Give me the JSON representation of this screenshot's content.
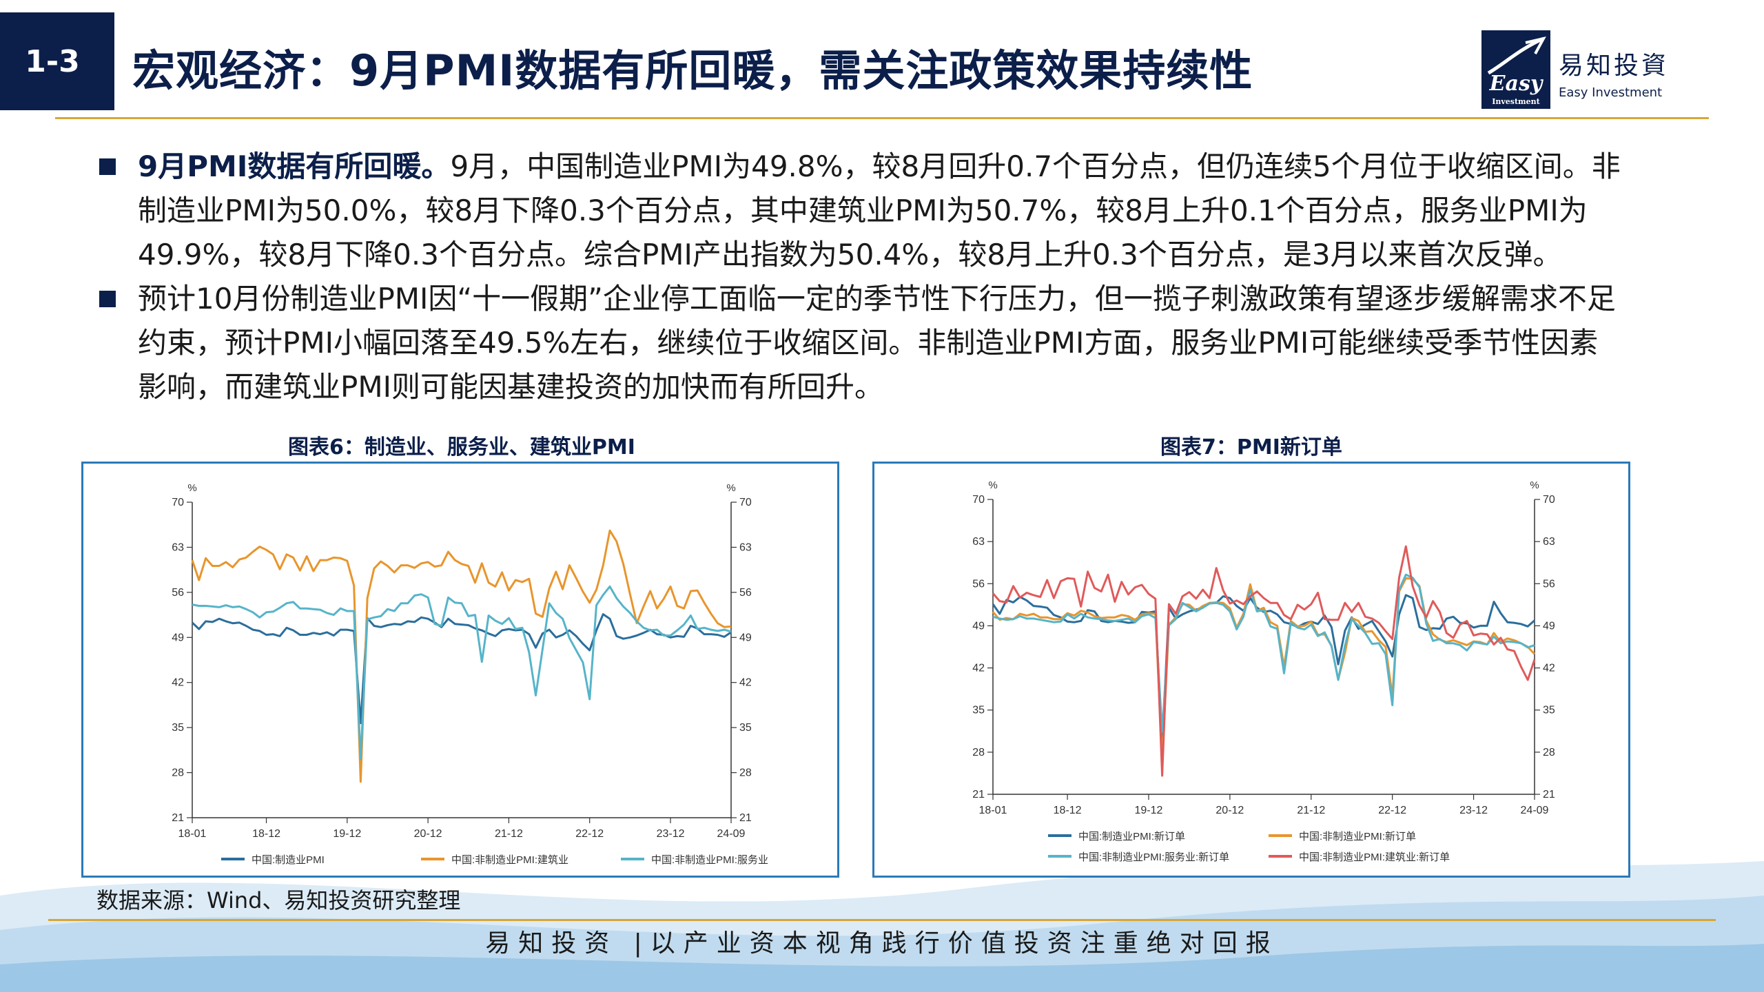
{
  "header": {
    "slide_number": "1-3",
    "title": "宏观经济：9月PMI数据有所回暖，需关注政策效果持续性",
    "logo_cn": "易知投資",
    "logo_en": "Easy Investment",
    "logo_mark": "Easy",
    "logo_mark_sub": "Investment"
  },
  "bullets": [
    {
      "lead": "9月PMI数据有所回暖。",
      "body": "9月，中国制造业PMI为49.8%，较8月回升0.7个百分点，但仍连续5个月位于收缩区间。非制造业PMI为50.0%，较8月下降0.3个百分点，其中建筑业PMI为50.7%，较8月上升0.1个百分点，服务业PMI为49.9%，较8月下降0.3个百分点。综合PMI产出指数为50.4%，较8月上升0.3个百分点，是3月以来首次反弹。"
    },
    {
      "lead": "",
      "body": "预计10月份制造业PMI因“十一假期”企业停工面临一定的季节性下行压力，但一揽子刺激政策有望逐步缓解需求不足约束，预计PMI小幅回落至49.5%左右，继续位于收缩区间。非制造业PMI方面，服务业PMI可能继续受季节性因素影响，而建筑业PMI则可能因基建投资的加快而有所回升。"
    }
  ],
  "source": "数据来源：Wind、易知投资研究整理",
  "footer": "易知投资 |以产业资本视角践行价值投资注重绝对回报",
  "colors": {
    "navy": "#0c1f4a",
    "gold": "#d7a638",
    "frame": "#2a7ab8"
  },
  "chart_data": [
    {
      "type": "line",
      "title": "图表6：制造业、服务业、建筑业PMI",
      "unit_left": "%",
      "unit_right": "%",
      "ylim": [
        21,
        70
      ],
      "yticks": [
        21,
        28,
        35,
        42,
        49,
        56,
        63,
        70
      ],
      "xticks": [
        "18-01",
        "18-12",
        "19-12",
        "20-12",
        "21-12",
        "22-12",
        "23-12",
        "24-09"
      ],
      "x_start": "2018-01",
      "x_end": "2024-09",
      "series": [
        {
          "name": "中国:制造业PMI",
          "color": "#2b6e9c",
          "values": [
            51.3,
            50.3,
            51.5,
            51.4,
            51.9,
            51.5,
            51.2,
            51.3,
            50.8,
            50.2,
            50.0,
            49.4,
            49.5,
            49.2,
            50.5,
            50.1,
            49.4,
            49.4,
            49.7,
            49.5,
            49.8,
            49.3,
            50.2,
            50.2,
            50.0,
            35.7,
            52.0,
            50.8,
            50.6,
            50.9,
            51.1,
            51.0,
            51.5,
            51.4,
            52.1,
            51.9,
            51.3,
            50.6,
            51.9,
            51.1,
            51.0,
            50.9,
            50.4,
            50.1,
            49.6,
            49.2,
            50.1,
            50.3,
            50.1,
            50.2,
            49.5,
            47.4,
            49.6,
            50.2,
            49.0,
            49.4,
            50.1,
            49.2,
            48.0,
            47.0,
            50.1,
            52.6,
            51.9,
            49.2,
            48.8,
            49.0,
            49.3,
            49.7,
            50.2,
            49.5,
            49.4,
            49.0,
            49.2,
            49.1,
            50.8,
            50.4,
            49.5,
            49.5,
            49.4,
            49.1,
            49.8
          ]
        },
        {
          "name": "中国:非制造业PMI:建筑业",
          "color": "#e8952c",
          "values": [
            61.0,
            57.9,
            61.3,
            60.1,
            60.1,
            60.7,
            59.9,
            61.1,
            61.4,
            62.3,
            63.1,
            62.6,
            61.9,
            59.6,
            61.9,
            61.4,
            59.4,
            61.6,
            59.3,
            61.0,
            61.0,
            61.4,
            61.3,
            60.9,
            57.1,
            26.6,
            55.1,
            59.7,
            60.8,
            60.1,
            59.1,
            60.2,
            60.2,
            59.8,
            60.5,
            60.7,
            60.0,
            60.2,
            62.3,
            61.0,
            60.4,
            60.1,
            57.5,
            60.5,
            57.5,
            56.9,
            59.1,
            56.3,
            57.9,
            57.6,
            58.1,
            52.7,
            52.2,
            56.6,
            59.2,
            56.5,
            60.2,
            58.2,
            56.1,
            54.4,
            56.4,
            60.2,
            65.6,
            63.9,
            60.4,
            55.7,
            51.2,
            53.8,
            56.2,
            53.5,
            55.0,
            56.9,
            53.9,
            53.5,
            56.2,
            56.3,
            54.4,
            52.7,
            51.2,
            50.6,
            50.7
          ]
        },
        {
          "name": "中国:非制造业PMI:服务业",
          "color": "#56b4c9",
          "values": [
            54.1,
            53.9,
            53.9,
            53.8,
            53.7,
            54.0,
            53.7,
            53.8,
            53.4,
            52.9,
            52.1,
            52.9,
            53.0,
            53.6,
            54.3,
            54.5,
            53.5,
            53.5,
            53.4,
            53.3,
            52.8,
            52.5,
            53.5,
            53.1,
            53.1,
            30.1,
            51.8,
            52.1,
            52.3,
            53.4,
            53.1,
            54.3,
            54.3,
            55.5,
            55.7,
            55.2,
            51.1,
            50.8,
            55.2,
            54.4,
            54.3,
            52.3,
            52.5,
            45.2,
            52.4,
            51.6,
            51.1,
            52.0,
            50.3,
            50.5,
            46.7,
            40.0,
            47.1,
            54.3,
            52.8,
            51.9,
            48.9,
            47.0,
            45.1,
            39.4,
            54.0,
            55.6,
            56.9,
            55.1,
            53.8,
            52.8,
            51.5,
            50.5,
            50.1,
            50.2,
            49.3,
            49.3,
            50.1,
            51.0,
            52.4,
            50.3,
            50.5,
            50.2,
            50.0,
            50.2,
            49.9
          ]
        }
      ]
    },
    {
      "type": "line",
      "title": "图表7：PMI新订单",
      "unit_left": "%",
      "unit_right": "%",
      "ylim": [
        21,
        70
      ],
      "yticks": [
        21,
        28,
        35,
        42,
        49,
        56,
        63,
        70
      ],
      "xticks": [
        "18-01",
        "18-12",
        "19-12",
        "20-12",
        "21-12",
        "22-12",
        "23-12",
        "24-09"
      ],
      "x_start": "2018-01",
      "x_end": "2024-09",
      "series": [
        {
          "name": "中国:制造业PMI:新订单",
          "color": "#2b6e9c",
          "values": [
            52.6,
            51.0,
            53.3,
            52.9,
            53.8,
            53.2,
            52.3,
            52.2,
            52.0,
            50.8,
            50.4,
            49.7,
            49.6,
            49.8,
            51.6,
            51.4,
            49.8,
            49.6,
            49.8,
            49.7,
            49.5,
            49.6,
            51.3,
            51.2,
            51.4,
            29.3,
            52.0,
            50.2,
            50.9,
            51.4,
            51.7,
            52.0,
            52.8,
            52.8,
            53.9,
            53.6,
            52.3,
            51.5,
            53.6,
            52.0,
            51.3,
            51.5,
            50.9,
            49.6,
            49.3,
            48.8,
            49.4,
            49.7,
            49.3,
            50.7,
            48.8,
            42.6,
            48.2,
            50.4,
            48.5,
            49.2,
            49.8,
            48.1,
            46.4,
            43.9,
            50.9,
            54.1,
            53.6,
            48.8,
            48.3,
            48.6,
            48.5,
            50.2,
            50.5,
            49.5,
            49.4,
            48.7,
            49.0,
            49.0,
            53.0,
            51.1,
            49.6,
            49.5,
            49.3,
            48.9,
            49.9
          ]
        },
        {
          "name": "中国:非制造业PMI:新订单",
          "color": "#e8952c",
          "values": [
            51.3,
            50.0,
            50.3,
            50.1,
            51.0,
            50.7,
            51.0,
            50.4,
            50.4,
            50.1,
            50.1,
            51.1,
            50.7,
            51.5,
            51.2,
            50.6,
            50.3,
            50.4,
            50.4,
            50.8,
            50.6,
            50.0,
            50.9,
            51.1,
            51.0,
            26.5,
            49.2,
            50.4,
            52.6,
            52.5,
            51.5,
            52.3,
            52.8,
            52.9,
            52.8,
            51.9,
            48.7,
            51.0,
            55.9,
            51.5,
            52.0,
            49.6,
            49.0,
            42.2,
            49.8,
            48.9,
            49.0,
            49.7,
            47.5,
            47.6,
            45.7,
            40.1,
            44.5,
            50.3,
            49.8,
            48.0,
            48.1,
            46.6,
            45.5,
            37.3,
            54.7,
            56.9,
            56.8,
            55.6,
            49.9,
            47.6,
            46.7,
            46.3,
            46.6,
            46.2,
            45.8,
            46.4,
            46.3,
            45.9,
            47.8,
            46.3,
            46.9,
            46.6,
            46.1,
            45.5,
            44.3
          ]
        },
        {
          "name": "中国:非制造业PMI:服务业:新订单",
          "color": "#56b4c9",
          "values": [
            50.5,
            50.2,
            50.0,
            50.1,
            50.6,
            50.2,
            50.2,
            50.0,
            49.8,
            49.6,
            49.7,
            50.9,
            50.2,
            51.0,
            50.4,
            50.2,
            50.1,
            49.9,
            49.8,
            50.0,
            50.2,
            49.6,
            50.6,
            50.9,
            50.3,
            31.4,
            49.1,
            50.1,
            52.8,
            52.1,
            51.4,
            52.0,
            52.7,
            52.8,
            52.5,
            51.4,
            48.4,
            50.5,
            55.0,
            51.4,
            51.6,
            48.9,
            48.5,
            41.1,
            49.5,
            48.7,
            48.4,
            49.2,
            47.3,
            47.9,
            45.6,
            40.0,
            45.7,
            50.1,
            49.0,
            47.8,
            46.0,
            46.1,
            44.3,
            35.8,
            55.0,
            57.5,
            57.0,
            55.4,
            49.4,
            46.5,
            46.8,
            46.1,
            46.1,
            45.8,
            44.9,
            46.3,
            46.1,
            45.9,
            47.2,
            46.1,
            46.4,
            46.3,
            46.1,
            45.4,
            45.8
          ]
        },
        {
          "name": "中国:非制造业PMI:建筑业:新订单",
          "color": "#e05a5a",
          "values": [
            54.4,
            53.1,
            52.9,
            55.6,
            53.7,
            54.5,
            54.1,
            53.8,
            56.6,
            53.6,
            56.4,
            56.9,
            56.8,
            52.2,
            58.0,
            55.3,
            54.7,
            57.5,
            53.0,
            56.3,
            54.2,
            55.4,
            55.8,
            54.3,
            53.5,
            24.1,
            52.6,
            51.0,
            53.9,
            54.6,
            53.5,
            55.0,
            53.6,
            58.6,
            54.9,
            52.7,
            53.2,
            52.6,
            53.9,
            54.7,
            53.6,
            52.8,
            52.8,
            50.8,
            50.1,
            52.5,
            51.7,
            52.6,
            54.5,
            50.1,
            50.0,
            50.0,
            52.8,
            51.3,
            52.8,
            50.5,
            50.2,
            49.5,
            48.1,
            46.8,
            57.0,
            62.2,
            55.6,
            52.4,
            50.4,
            53.1,
            51.3,
            47.8,
            47.0,
            49.2,
            49.8,
            47.4,
            47.7,
            47.6,
            45.9,
            47.0,
            45.1,
            44.8,
            42.2,
            40.0,
            43.4
          ]
        }
      ]
    }
  ]
}
